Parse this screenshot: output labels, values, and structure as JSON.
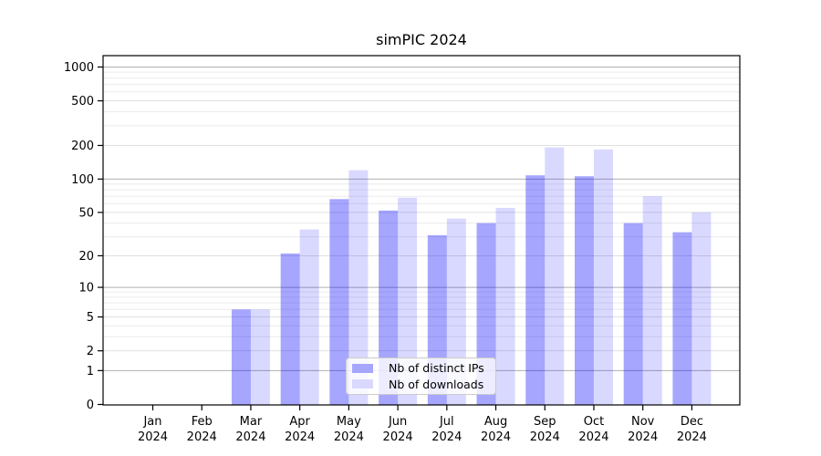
{
  "chart_data": {
    "type": "bar",
    "title": "simPIC 2024",
    "categories": [
      "Jan",
      "Feb",
      "Mar",
      "Apr",
      "May",
      "Jun",
      "Jul",
      "Aug",
      "Sep",
      "Oct",
      "Nov",
      "Dec"
    ],
    "category_year": "2024",
    "series": [
      {
        "name": "Nb of distinct IPs",
        "color": "#a6a6ff",
        "base_color": "#0000ff",
        "opacity": 0.35,
        "values": [
          0,
          0,
          6,
          21,
          66,
          52,
          31,
          40,
          108,
          106,
          40,
          33
        ]
      },
      {
        "name": "Nb of downloads",
        "color": "#d9d9ff",
        "base_color": "#0000ff",
        "opacity": 0.15,
        "values": [
          0,
          0,
          6,
          35,
          120,
          68,
          44,
          55,
          192,
          184,
          70,
          50
        ]
      }
    ],
    "yscale": "log1p",
    "ylim": [
      0,
      1250
    ],
    "yticks": [
      0,
      1,
      2,
      5,
      10,
      20,
      50,
      100,
      200,
      500,
      1000
    ],
    "gridlines_major": [
      1,
      10,
      100,
      1000
    ],
    "gridlines_mid": [
      2,
      5,
      20,
      50,
      200,
      500
    ],
    "gridlines_minor": [
      3,
      4,
      6,
      7,
      8,
      9,
      30,
      40,
      60,
      70,
      80,
      90,
      300,
      400,
      600,
      700,
      800,
      900
    ],
    "grid": true,
    "legend_position": "lower center",
    "colors": {
      "axis": "#000000",
      "grid_major": "#b0b0b0",
      "grid_mid": "#e0e0e0",
      "grid_minor": "#ebebeb",
      "legend_border": "#cccccc",
      "background": "#ffffff"
    }
  }
}
